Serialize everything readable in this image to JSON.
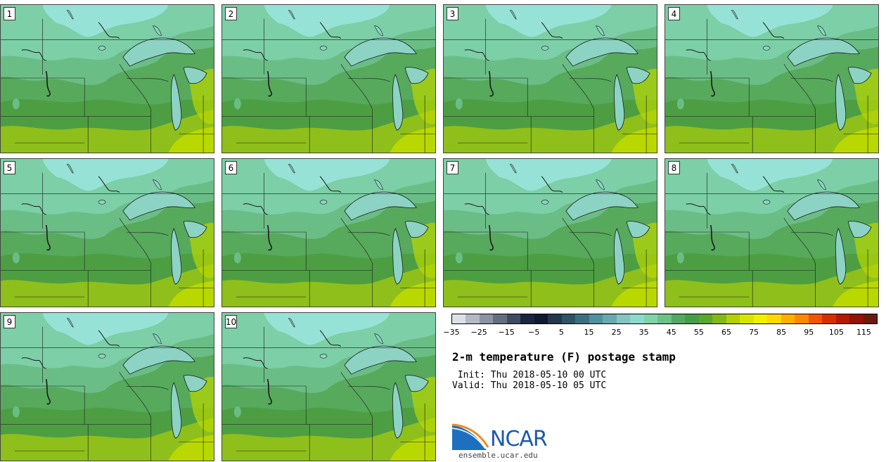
{
  "panels": [
    {
      "label": "1"
    },
    {
      "label": "2"
    },
    {
      "label": "3"
    },
    {
      "label": "4"
    },
    {
      "label": "5"
    },
    {
      "label": "6"
    },
    {
      "label": "7"
    },
    {
      "label": "8"
    },
    {
      "label": "9"
    },
    {
      "label": "10"
    }
  ],
  "colorbar": {
    "colors": [
      "#dde1e7",
      "#b4bac4",
      "#8a93a2",
      "#646e80",
      "#3f4b60",
      "#1b2540",
      "#0f1a30",
      "#23384c",
      "#2f5366",
      "#3e6f80",
      "#51909e",
      "#6aa9b0",
      "#86c4c4",
      "#8fd8cc",
      "#7fd3a8",
      "#6cc185",
      "#55a864",
      "#479d45",
      "#5aa630",
      "#84b819",
      "#b3d100",
      "#d7e600",
      "#f2f000",
      "#ffd900",
      "#ffae00",
      "#ff8800",
      "#f25500",
      "#d43000",
      "#b31a00",
      "#8e1508",
      "#6b1a0c"
    ],
    "tick_labels": [
      "−35",
      "−25",
      "−15",
      "−5",
      "5",
      "15",
      "25",
      "35",
      "45",
      "55",
      "65",
      "75",
      "85",
      "95",
      "105",
      "115"
    ]
  },
  "title": "2-m temperature (F) postage stamp",
  "init_line": " Init: Thu 2018-05-10 00 UTC",
  "valid_line": "Valid: Thu 2018-05-10 05 UTC",
  "logo": {
    "name": "NCAR",
    "website": "ensemble.ucar.edu",
    "blue": "#1e6fc0",
    "orange": "#f08a24"
  },
  "map_colors": {
    "coldest": "#97e2d6",
    "cold": "#7ccfa6",
    "mid": "#6bbd86",
    "warm": "#57a95c",
    "warmer": "#4d9e42",
    "warmest": "#8fbf1b",
    "hot": "#b8d800",
    "lake": "#8cd3c4",
    "line": "#1a1a1a"
  }
}
